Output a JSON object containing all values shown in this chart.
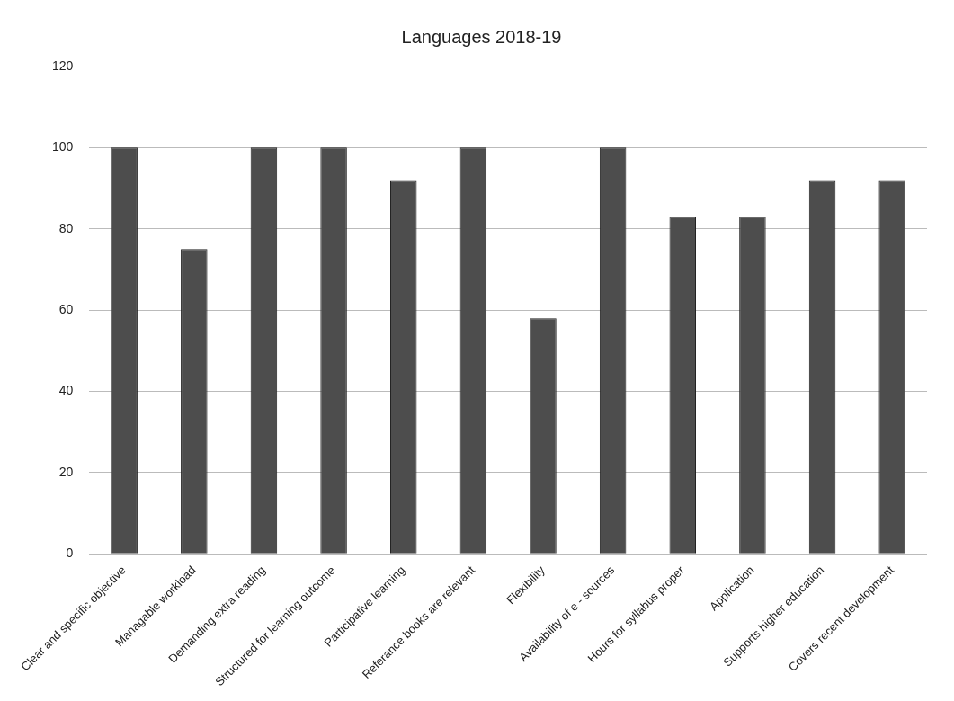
{
  "chart_data": {
    "type": "bar",
    "title": "Languages 2018-19",
    "categories": [
      "Clear and specific objective",
      "Managable workload",
      "Demanding extra reading",
      "Structured for learning outcome",
      "Participative learning",
      "Referance books are relevant",
      "Flexibility",
      "Availability of e - sources",
      "Hours for syllabus proper",
      "Application",
      "Supports higher education",
      "Covers recent development"
    ],
    "values": [
      100,
      75,
      100,
      100,
      92,
      100,
      58,
      100,
      83,
      83,
      92,
      92
    ],
    "color": "#4d4d4d",
    "ylim": [
      0,
      120
    ],
    "yticks": [
      0,
      20,
      40,
      60,
      80,
      100,
      120
    ],
    "grid": "y"
  }
}
